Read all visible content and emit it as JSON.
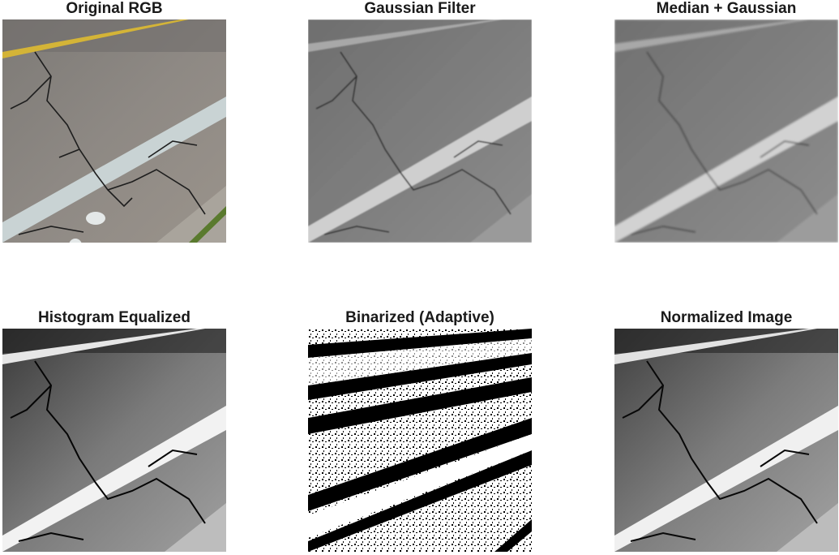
{
  "panels": [
    {
      "id": "original",
      "title": "Original RGB"
    },
    {
      "id": "gaussian",
      "title": "Gaussian Filter"
    },
    {
      "id": "median",
      "title": "Median + Gaussian"
    },
    {
      "id": "histeq",
      "title": "Histogram Equalized"
    },
    {
      "id": "binarized",
      "title": "Binarized (Adaptive)"
    },
    {
      "id": "normalized",
      "title": "Normalized Image"
    }
  ],
  "colors": {
    "asphalt": "#8a8680",
    "curb": "#c9d3d4",
    "lane_line": "#d4b437",
    "crack": "#1e1e1e",
    "grass": "#5a7a2e"
  }
}
